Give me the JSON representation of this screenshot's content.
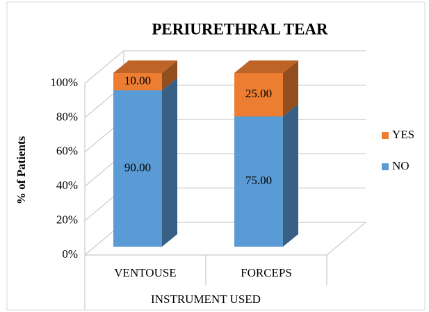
{
  "chart_data": {
    "type": "bar3d_stacked",
    "title": "PERIURETHRAL TEAR",
    "x_label": "INSTRUMENT USED",
    "y_label": "% of Patients",
    "categories": [
      "VENTOUSE",
      "FORCEPS"
    ],
    "series": [
      {
        "name": "NO",
        "color": "#5b9bd5",
        "values": [
          90,
          75
        ],
        "value_labels": [
          "90.00",
          "75.00"
        ]
      },
      {
        "name": "YES",
        "color": "#ed7d31",
        "values": [
          10,
          25
        ],
        "value_labels": [
          "10.00",
          "25.00"
        ]
      }
    ],
    "ylim": [
      0,
      100
    ],
    "yticks": [
      {
        "value": 0,
        "label": "0%"
      },
      {
        "value": 20,
        "label": "20%"
      },
      {
        "value": 40,
        "label": "40%"
      },
      {
        "value": 60,
        "label": "60%"
      },
      {
        "value": 80,
        "label": "80%"
      },
      {
        "value": 100,
        "label": "100%"
      }
    ],
    "grid": true,
    "legend": "right"
  }
}
